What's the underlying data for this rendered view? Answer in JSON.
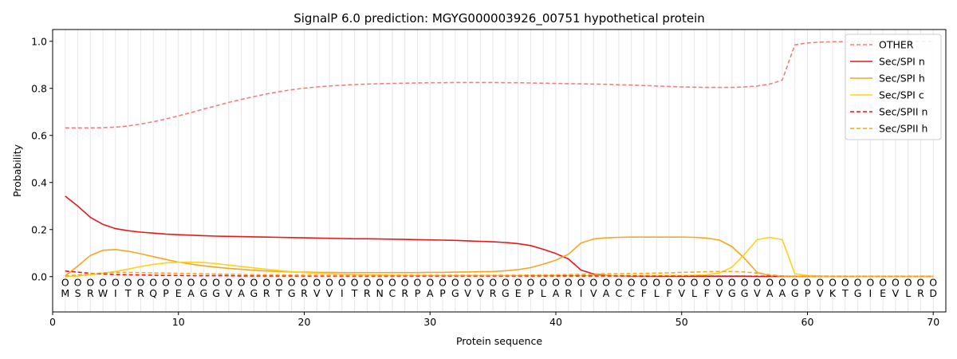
{
  "chart_data": {
    "type": "line",
    "title": "SignalP 6.0 prediction: MGYG000003926_00751 hypothetical protein",
    "xlabel": "Protein sequence",
    "ylabel": "Probability",
    "xlim": [
      0,
      71
    ],
    "ylim": [
      -0.15,
      1.05
    ],
    "xticks": [
      "0",
      "10",
      "20",
      "30",
      "40",
      "50",
      "60",
      "70"
    ],
    "yticks": [
      "0.0",
      "0.2",
      "0.4",
      "0.6",
      "0.8",
      "1.0"
    ],
    "grid": "vertical lines at each residue",
    "legend_position": "top-right",
    "sequence": [
      "M",
      "S",
      "R",
      "W",
      "I",
      "T",
      "R",
      "Q",
      "P",
      "E",
      "A",
      "G",
      "G",
      "V",
      "A",
      "G",
      "R",
      "T",
      "G",
      "R",
      "V",
      "V",
      "I",
      "T",
      "R",
      "N",
      "C",
      "R",
      "P",
      "A",
      "P",
      "G",
      "V",
      "V",
      "R",
      "G",
      "E",
      "P",
      "L",
      "A",
      "R",
      "I",
      "V",
      "A",
      "C",
      "C",
      "F",
      "L",
      "F",
      "V",
      "L",
      "F",
      "V",
      "G",
      "G",
      "V",
      "A",
      "A",
      "G",
      "P",
      "V",
      "K",
      "T",
      "G",
      "I",
      "E",
      "V",
      "L",
      "R",
      "D"
    ],
    "label_marker": "O",
    "x": [
      1,
      2,
      3,
      4,
      5,
      6,
      7,
      8,
      9,
      10,
      11,
      12,
      13,
      14,
      15,
      16,
      17,
      18,
      19,
      20,
      21,
      22,
      23,
      24,
      25,
      26,
      27,
      28,
      29,
      30,
      31,
      32,
      33,
      34,
      35,
      36,
      37,
      38,
      39,
      40,
      41,
      42,
      43,
      44,
      45,
      46,
      47,
      48,
      49,
      50,
      51,
      52,
      53,
      54,
      55,
      56,
      57,
      58,
      59,
      60,
      61,
      62,
      63,
      64,
      65,
      66,
      67,
      68,
      69,
      70
    ],
    "series": [
      {
        "name": "OTHER",
        "color": "#f08080",
        "dash": "dashed",
        "values": [
          0.632,
          0.632,
          0.632,
          0.633,
          0.635,
          0.64,
          0.648,
          0.658,
          0.67,
          0.683,
          0.697,
          0.712,
          0.726,
          0.74,
          0.753,
          0.765,
          0.776,
          0.786,
          0.794,
          0.801,
          0.806,
          0.81,
          0.813,
          0.816,
          0.818,
          0.82,
          0.821,
          0.822,
          0.823,
          0.824,
          0.824,
          0.825,
          0.825,
          0.825,
          0.825,
          0.824,
          0.824,
          0.823,
          0.822,
          0.821,
          0.82,
          0.819,
          0.818,
          0.817,
          0.815,
          0.814,
          0.812,
          0.81,
          0.808,
          0.806,
          0.805,
          0.804,
          0.804,
          0.804,
          0.806,
          0.81,
          0.818,
          0.835,
          0.985,
          0.993,
          0.996,
          0.998,
          0.998,
          0.999,
          0.999,
          0.999,
          0.999,
          0.999,
          0.999,
          0.999
        ]
      },
      {
        "name": "Sec/SPI n",
        "color": "#e6191a",
        "dash": "solid",
        "values": [
          0.342,
          0.3,
          0.252,
          0.222,
          0.204,
          0.195,
          0.189,
          0.185,
          0.181,
          0.178,
          0.176,
          0.174,
          0.172,
          0.171,
          0.17,
          0.169,
          0.168,
          0.167,
          0.166,
          0.165,
          0.164,
          0.163,
          0.162,
          0.161,
          0.161,
          0.16,
          0.159,
          0.158,
          0.157,
          0.156,
          0.155,
          0.154,
          0.152,
          0.15,
          0.148,
          0.145,
          0.14,
          0.132,
          0.116,
          0.098,
          0.075,
          0.028,
          0.011,
          0.006,
          0.004,
          0.003,
          0.003,
          0.002,
          0.002,
          0.002,
          0.002,
          0.002,
          0.002,
          0.002,
          0.002,
          0.001,
          0.001,
          0.001,
          0.001,
          0.001,
          0.001,
          0.001,
          0.001,
          0.001,
          0.001,
          0.001,
          0.001,
          0.001,
          0.001,
          0.001
        ]
      },
      {
        "name": "Sec/SPI h",
        "color": "#f5a623",
        "dash": "solid",
        "values": [
          0.003,
          0.045,
          0.09,
          0.112,
          0.115,
          0.108,
          0.097,
          0.085,
          0.073,
          0.062,
          0.053,
          0.046,
          0.04,
          0.035,
          0.031,
          0.027,
          0.024,
          0.022,
          0.02,
          0.019,
          0.018,
          0.018,
          0.017,
          0.017,
          0.017,
          0.017,
          0.017,
          0.017,
          0.017,
          0.018,
          0.018,
          0.019,
          0.02,
          0.021,
          0.022,
          0.025,
          0.03,
          0.038,
          0.053,
          0.07,
          0.095,
          0.143,
          0.16,
          0.165,
          0.167,
          0.168,
          0.168,
          0.168,
          0.168,
          0.168,
          0.167,
          0.164,
          0.155,
          0.128,
          0.077,
          0.018,
          0.004,
          0.002,
          0.002,
          0.001,
          0.001,
          0.001,
          0.001,
          0.001,
          0.001,
          0.001,
          0.001,
          0.001,
          0.001,
          0.001
        ]
      },
      {
        "name": "Sec/SPI c",
        "color": "#ffd11a",
        "dash": "solid",
        "values": [
          0.001,
          0.003,
          0.008,
          0.014,
          0.022,
          0.032,
          0.043,
          0.052,
          0.058,
          0.061,
          0.062,
          0.06,
          0.055,
          0.049,
          0.043,
          0.037,
          0.031,
          0.026,
          0.021,
          0.017,
          0.014,
          0.012,
          0.01,
          0.009,
          0.008,
          0.007,
          0.006,
          0.006,
          0.005,
          0.005,
          0.005,
          0.005,
          0.005,
          0.005,
          0.005,
          0.005,
          0.005,
          0.005,
          0.005,
          0.005,
          0.005,
          0.005,
          0.005,
          0.005,
          0.005,
          0.005,
          0.005,
          0.005,
          0.005,
          0.005,
          0.006,
          0.008,
          0.015,
          0.04,
          0.095,
          0.157,
          0.167,
          0.157,
          0.012,
          0.005,
          0.003,
          0.002,
          0.002,
          0.001,
          0.001,
          0.001,
          0.001,
          0.001,
          0.001,
          0.001
        ]
      },
      {
        "name": "Sec/SPII n",
        "color": "#e6191a",
        "dash": "dashed",
        "values": [
          0.024,
          0.019,
          0.014,
          0.011,
          0.009,
          0.008,
          0.007,
          0.006,
          0.005,
          0.005,
          0.004,
          0.004,
          0.004,
          0.004,
          0.003,
          0.003,
          0.003,
          0.003,
          0.003,
          0.003,
          0.003,
          0.003,
          0.003,
          0.003,
          0.003,
          0.003,
          0.003,
          0.003,
          0.003,
          0.003,
          0.003,
          0.003,
          0.003,
          0.003,
          0.003,
          0.003,
          0.003,
          0.003,
          0.003,
          0.003,
          0.003,
          0.003,
          0.003,
          0.003,
          0.003,
          0.003,
          0.002,
          0.002,
          0.002,
          0.002,
          0.002,
          0.002,
          0.002,
          0.002,
          0.002,
          0.002,
          0.002,
          0.002,
          0.001,
          0.001,
          0.001,
          0.001,
          0.001,
          0.001,
          0.001,
          0.001,
          0.001,
          0.001,
          0.001,
          0.001
        ]
      },
      {
        "name": "Sec/SPII h",
        "color": "#f5a623",
        "dash": "dashed",
        "values": [
          0.003,
          0.007,
          0.012,
          0.016,
          0.018,
          0.018,
          0.017,
          0.016,
          0.015,
          0.014,
          0.013,
          0.012,
          0.011,
          0.01,
          0.009,
          0.008,
          0.008,
          0.007,
          0.007,
          0.006,
          0.006,
          0.006,
          0.006,
          0.006,
          0.006,
          0.006,
          0.006,
          0.006,
          0.006,
          0.006,
          0.006,
          0.006,
          0.006,
          0.006,
          0.006,
          0.006,
          0.006,
          0.007,
          0.007,
          0.008,
          0.009,
          0.01,
          0.011,
          0.012,
          0.012,
          0.013,
          0.014,
          0.015,
          0.016,
          0.018,
          0.019,
          0.021,
          0.022,
          0.022,
          0.02,
          0.015,
          0.008,
          0.003,
          0.001,
          0.001,
          0.001,
          0.001,
          0.001,
          0.001,
          0.001,
          0.001,
          0.001,
          0.001,
          0.001,
          0.001
        ]
      }
    ]
  }
}
